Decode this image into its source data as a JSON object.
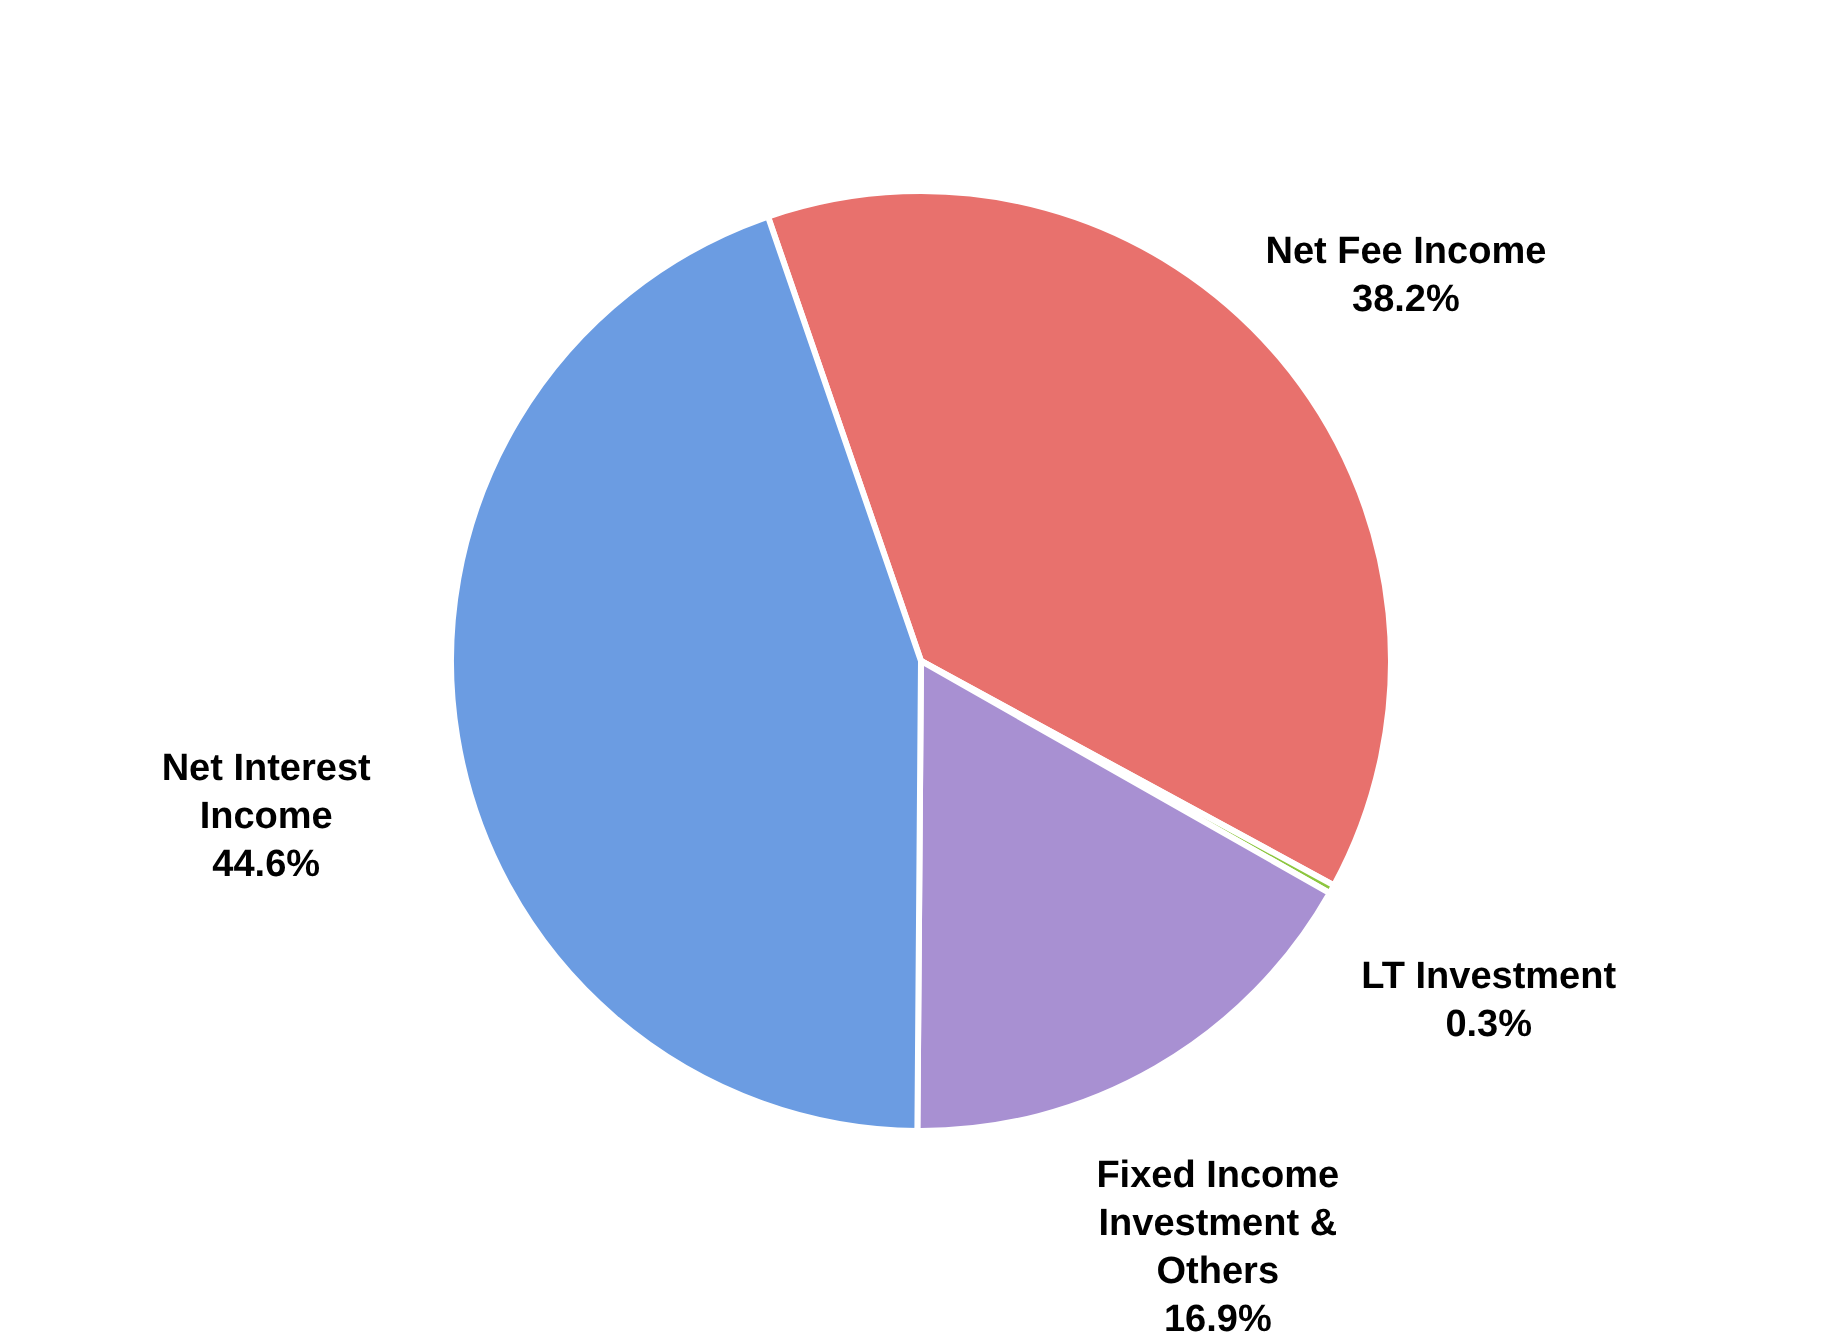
{
  "chart_data": {
    "type": "pie",
    "categories": [
      "Net Fee Income",
      "LT Investment",
      "Fixed Income Investment & Others",
      "Net Interest Income"
    ],
    "values": [
      38.2,
      0.3,
      16.9,
      44.6
    ],
    "colors": [
      "#e8716d",
      "#8dc63f",
      "#a890d2",
      "#6b9ce2"
    ],
    "value_labels": [
      "38.2%",
      "0.3%",
      "16.9%",
      "44.6%"
    ],
    "legend": false
  }
}
